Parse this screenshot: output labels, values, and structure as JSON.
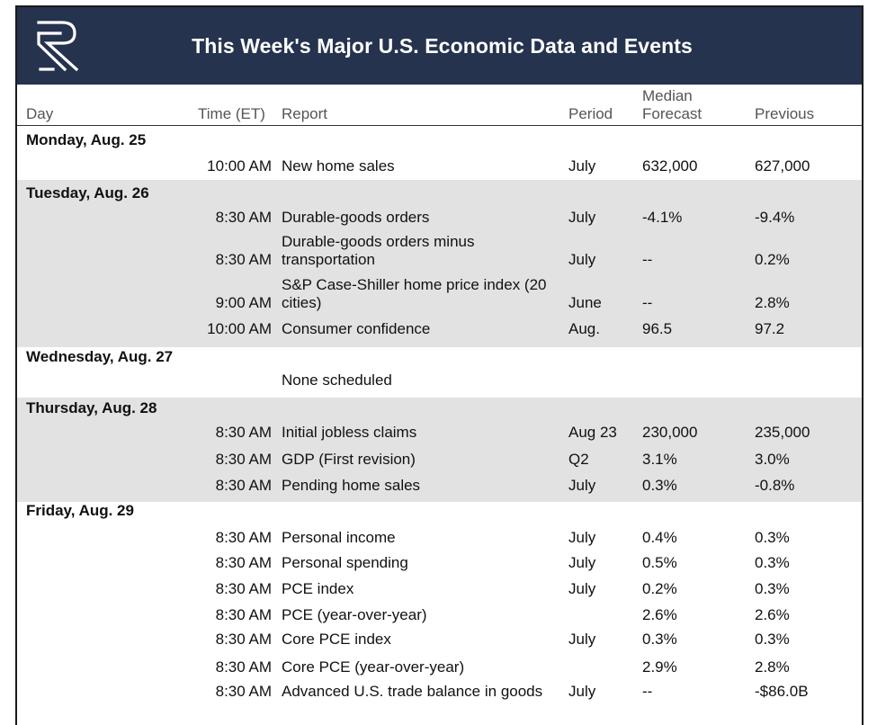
{
  "banner": {
    "title": "This Week's Major U.S. Economic Data and Events",
    "logo_icon": "r-logo-icon",
    "background_color": "#26334f"
  },
  "columns": {
    "day": "Day",
    "time": "Time (ET)",
    "report": "Report",
    "period": "Period",
    "forecast_line1": "Median",
    "forecast_line2": "Forecast",
    "previous": "Previous"
  },
  "days": [
    {
      "label": "Monday, Aug. 25",
      "rows": [
        {
          "time": "10:00 AM",
          "report": [
            "New home sales"
          ],
          "period": "July",
          "forecast": "632,000",
          "previous": "627,000"
        }
      ]
    },
    {
      "label": "Tuesday, Aug. 26",
      "rows": [
        {
          "time": "8:30 AM",
          "report": [
            "Durable-goods orders"
          ],
          "period": "July",
          "forecast": "-4.1%",
          "previous": "-9.4%"
        },
        {
          "time": "8:30 AM",
          "report": [
            "Durable-goods orders minus",
            "transportation"
          ],
          "period": "July",
          "forecast": "--",
          "previous": "0.2%"
        },
        {
          "time": "9:00 AM",
          "report": [
            "S&P Case-Shiller home price index (20",
            "cities)"
          ],
          "period": "June",
          "forecast": "--",
          "previous": "2.8%"
        },
        {
          "time": "10:00 AM",
          "report": [
            "Consumer confidence"
          ],
          "period": "Aug.",
          "forecast": "96.5",
          "previous": "97.2"
        }
      ]
    },
    {
      "label": "Wednesday, Aug. 27",
      "rows": [
        {
          "time": "",
          "report": [
            "None scheduled"
          ],
          "period": "",
          "forecast": "",
          "previous": ""
        }
      ]
    },
    {
      "label": "Thursday, Aug. 28",
      "rows": [
        {
          "time": "8:30 AM",
          "report": [
            "Initial jobless claims"
          ],
          "period": "Aug 23",
          "forecast": "230,000",
          "previous": "235,000"
        },
        {
          "time": "8:30 AM",
          "report": [
            "GDP (First revision)"
          ],
          "period": "Q2",
          "forecast": "3.1%",
          "previous": "3.0%"
        },
        {
          "time": "8:30 AM",
          "report": [
            "Pending home sales"
          ],
          "period": "July",
          "forecast": "0.3%",
          "previous": "-0.8%"
        }
      ]
    },
    {
      "label": "Friday, Aug. 29",
      "rows": [
        {
          "time": "8:30 AM",
          "report": [
            "Personal income"
          ],
          "period": "July",
          "forecast": "0.4%",
          "previous": "0.3%"
        },
        {
          "time": "8:30 AM",
          "report": [
            "Personal spending"
          ],
          "period": "July",
          "forecast": "0.5%",
          "previous": "0.3%"
        },
        {
          "time": "8:30 AM",
          "report": [
            "PCE index"
          ],
          "period": "July",
          "forecast": "0.2%",
          "previous": "0.3%"
        },
        {
          "time": "8:30 AM",
          "report": [
            "PCE (year-over-year)"
          ],
          "period": "",
          "forecast": "2.6%",
          "previous": "2.6%"
        },
        {
          "time": "8:30 AM",
          "report": [
            "Core PCE index"
          ],
          "period": "July",
          "forecast": "0.3%",
          "previous": "0.3%"
        },
        {
          "time": "8:30 AM",
          "report": [
            "Core PCE (year-over-year)"
          ],
          "period": "",
          "forecast": "2.9%",
          "previous": "2.8%"
        },
        {
          "time": "8:30 AM",
          "report": [
            "Advanced U.S. trade balance in goods"
          ],
          "period": "July",
          "forecast": "--",
          "previous": "-$86.0B"
        }
      ]
    }
  ]
}
